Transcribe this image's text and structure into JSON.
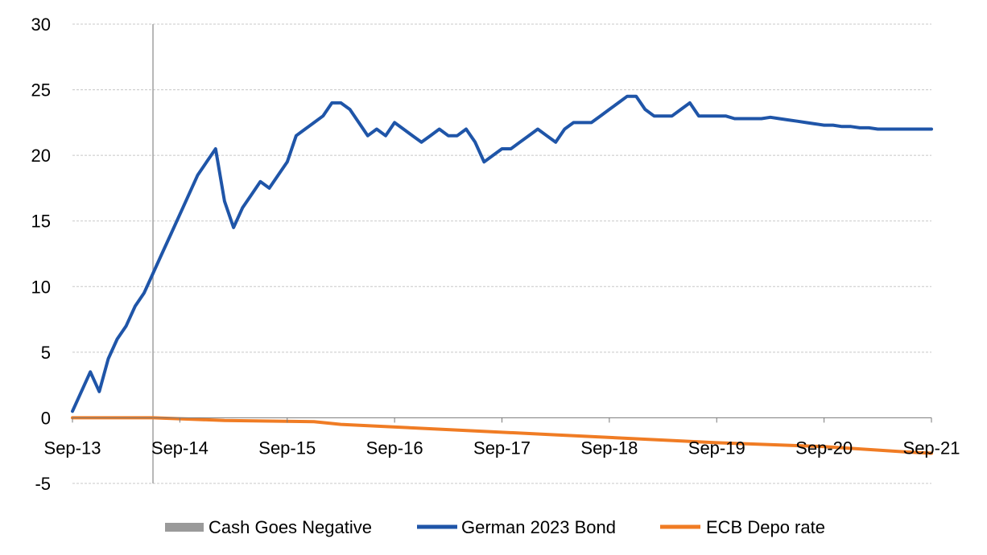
{
  "chart_data": {
    "type": "line",
    "title": "",
    "xlabel": "",
    "ylabel": "",
    "ylim": [
      -5,
      30
    ],
    "yticks": [
      "30",
      "25",
      "20",
      "15",
      "10",
      "5",
      "0",
      "-5"
    ],
    "ytick_values": [
      30,
      25,
      20,
      15,
      10,
      5,
      0,
      -5
    ],
    "xlim": [
      "2013-09",
      "2021-09"
    ],
    "xticks": [
      "Sep-13",
      "Sep-14",
      "Sep-15",
      "Sep-16",
      "Sep-17",
      "Sep-18",
      "Sep-19",
      "Sep-20",
      "Sep-21"
    ],
    "xtick_dates": [
      "2013-09",
      "2014-09",
      "2015-09",
      "2016-09",
      "2017-09",
      "2018-09",
      "2019-09",
      "2020-09",
      "2021-09"
    ],
    "grid": true,
    "legend_position": "bottom",
    "event_marker": {
      "name": "Cash Goes Negative",
      "date": "2014-06",
      "color": "#a0a0a0"
    },
    "series": [
      {
        "name": "German 2023 Bond",
        "color": "#1f55a8",
        "x": [
          "2013-09",
          "2013-10",
          "2013-11",
          "2013-12",
          "2014-01",
          "2014-02",
          "2014-03",
          "2014-04",
          "2014-05",
          "2014-06",
          "2014-07",
          "2014-08",
          "2014-09",
          "2014-10",
          "2014-11",
          "2014-12",
          "2015-01",
          "2015-02",
          "2015-03",
          "2015-04",
          "2015-05",
          "2015-06",
          "2015-07",
          "2015-08",
          "2015-09",
          "2015-10",
          "2015-11",
          "2015-12",
          "2016-01",
          "2016-02",
          "2016-03",
          "2016-04",
          "2016-05",
          "2016-06",
          "2016-07",
          "2016-08",
          "2016-09",
          "2016-10",
          "2016-11",
          "2016-12",
          "2017-01",
          "2017-02",
          "2017-03",
          "2017-04",
          "2017-05",
          "2017-06",
          "2017-07",
          "2017-08",
          "2017-09",
          "2017-10",
          "2017-11",
          "2017-12",
          "2018-01",
          "2018-02",
          "2018-03",
          "2018-04",
          "2018-05",
          "2018-06",
          "2018-07",
          "2018-08",
          "2018-09",
          "2018-10",
          "2018-11",
          "2018-12",
          "2019-01",
          "2019-02",
          "2019-03",
          "2019-04",
          "2019-05",
          "2019-06",
          "2019-07",
          "2019-08",
          "2019-09",
          "2019-10",
          "2019-11",
          "2019-12",
          "2020-01",
          "2020-02",
          "2020-03",
          "2020-04",
          "2020-05",
          "2020-06",
          "2020-07",
          "2020-08",
          "2020-09",
          "2020-10",
          "2020-11",
          "2020-12",
          "2021-01",
          "2021-02",
          "2021-03",
          "2021-04",
          "2021-05",
          "2021-06",
          "2021-07",
          "2021-08",
          "2021-09"
        ],
        "values": [
          0.5,
          2.0,
          3.5,
          2.0,
          4.5,
          6.0,
          7.0,
          8.5,
          9.5,
          11.0,
          12.5,
          14.0,
          15.5,
          17.0,
          18.5,
          19.5,
          20.5,
          16.5,
          14.5,
          16.0,
          17.0,
          18.0,
          17.5,
          18.5,
          19.5,
          21.5,
          22.0,
          22.5,
          23.0,
          24.0,
          24.0,
          23.5,
          22.5,
          21.5,
          22.0,
          21.5,
          22.5,
          22.0,
          21.5,
          21.0,
          21.5,
          22.0,
          21.5,
          21.5,
          22.0,
          21.0,
          19.5,
          20.0,
          20.5,
          20.5,
          21.0,
          21.5,
          22.0,
          21.5,
          21.0,
          22.0,
          22.5,
          22.5,
          22.5,
          23.0,
          23.5,
          24.0,
          24.5,
          24.5,
          23.5,
          23.0,
          23.0,
          23.0,
          23.5,
          24.0,
          23.0,
          23.0,
          23.0,
          23.0,
          22.8,
          22.8,
          22.8,
          22.8,
          22.9,
          22.8,
          22.7,
          22.6,
          22.5,
          22.4,
          22.3,
          22.3,
          22.2,
          22.2,
          22.1,
          22.1,
          22.0,
          22.0,
          22.0,
          22.0,
          22.0,
          22.0,
          22.0
        ]
      },
      {
        "name": "ECB Depo rate",
        "color": "#f07c24",
        "x": [
          "2013-09",
          "2014-06",
          "2015-02",
          "2015-12",
          "2016-03",
          "2017-03",
          "2018-03",
          "2019-09",
          "2020-09",
          "2021-06",
          "2021-09"
        ],
        "values": [
          0.0,
          0.0,
          -0.2,
          -0.3,
          -0.5,
          -0.9,
          -1.3,
          -1.9,
          -2.2,
          -2.6,
          -2.7
        ]
      }
    ]
  }
}
